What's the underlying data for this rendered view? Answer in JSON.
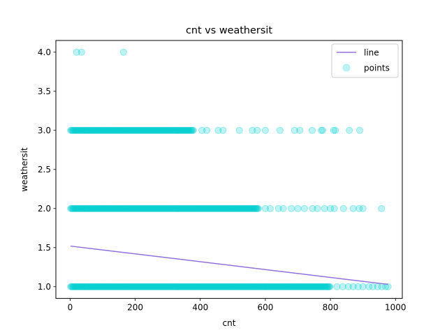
{
  "chart_data": {
    "type": "scatter",
    "title": "cnt vs weathersit",
    "xlabel": "cnt",
    "ylabel": "weathersit",
    "xlim": [
      -43.9,
      1020.9
    ],
    "ylim": [
      0.85,
      4.15
    ],
    "xticks": [
      0,
      200,
      400,
      600,
      800,
      1000
    ],
    "xtick_labels": [
      "0",
      "200",
      "400",
      "600",
      "800",
      "1000"
    ],
    "yticks": [
      1.0,
      1.5,
      2.0,
      2.5,
      3.0,
      3.5,
      4.0
    ],
    "ytick_labels": [
      "1.0",
      "1.5",
      "2.0",
      "2.5",
      "3.0",
      "3.5",
      "4.0"
    ],
    "grid": false,
    "legend": {
      "placement": "top-right",
      "entries": [
        {
          "label": "line",
          "kind": "line",
          "color": "#9370db"
        },
        {
          "label": "points",
          "kind": "marker",
          "color": "#00ced1"
        }
      ]
    },
    "series": [
      {
        "name": "line",
        "kind": "line",
        "color": "#9370db",
        "x": [
          1,
          977
        ],
        "y": [
          1.52,
          1.03
        ]
      },
      {
        "name": "points",
        "kind": "scatter",
        "color": "#00ced1",
        "alpha": 0.25,
        "dense_bands": [
          {
            "y": 1.0,
            "x_range": [
              1,
              800
            ]
          },
          {
            "y": 2.0,
            "x_range": [
              1,
              580
            ]
          },
          {
            "y": 3.0,
            "x_range": [
              1,
              380
            ]
          }
        ],
        "points": [
          {
            "x": 20,
            "y": 4.0
          },
          {
            "x": 35,
            "y": 4.0
          },
          {
            "x": 164,
            "y": 4.0
          },
          {
            "x": 405,
            "y": 3.0
          },
          {
            "x": 420,
            "y": 3.0
          },
          {
            "x": 455,
            "y": 3.0
          },
          {
            "x": 470,
            "y": 3.0
          },
          {
            "x": 520,
            "y": 3.0
          },
          {
            "x": 560,
            "y": 3.0
          },
          {
            "x": 575,
            "y": 3.0
          },
          {
            "x": 600,
            "y": 3.0
          },
          {
            "x": 645,
            "y": 3.0
          },
          {
            "x": 690,
            "y": 3.0
          },
          {
            "x": 706,
            "y": 3.0
          },
          {
            "x": 744,
            "y": 3.0
          },
          {
            "x": 772,
            "y": 3.0
          },
          {
            "x": 776,
            "y": 3.0
          },
          {
            "x": 810,
            "y": 3.0
          },
          {
            "x": 815,
            "y": 3.0
          },
          {
            "x": 858,
            "y": 3.0
          },
          {
            "x": 890,
            "y": 3.0
          },
          {
            "x": 600,
            "y": 2.0
          },
          {
            "x": 615,
            "y": 2.0
          },
          {
            "x": 640,
            "y": 2.0
          },
          {
            "x": 655,
            "y": 2.0
          },
          {
            "x": 680,
            "y": 2.0
          },
          {
            "x": 700,
            "y": 2.0
          },
          {
            "x": 720,
            "y": 2.0
          },
          {
            "x": 745,
            "y": 2.0
          },
          {
            "x": 760,
            "y": 2.0
          },
          {
            "x": 782,
            "y": 2.0
          },
          {
            "x": 800,
            "y": 2.0
          },
          {
            "x": 812,
            "y": 2.0
          },
          {
            "x": 840,
            "y": 2.0
          },
          {
            "x": 870,
            "y": 2.0
          },
          {
            "x": 888,
            "y": 2.0
          },
          {
            "x": 900,
            "y": 2.0
          },
          {
            "x": 957,
            "y": 2.0
          },
          {
            "x": 820,
            "y": 1.0
          },
          {
            "x": 838,
            "y": 1.0
          },
          {
            "x": 855,
            "y": 1.0
          },
          {
            "x": 870,
            "y": 1.0
          },
          {
            "x": 885,
            "y": 1.0
          },
          {
            "x": 900,
            "y": 1.0
          },
          {
            "x": 918,
            "y": 1.0
          },
          {
            "x": 930,
            "y": 1.0
          },
          {
            "x": 945,
            "y": 1.0
          },
          {
            "x": 958,
            "y": 1.0
          },
          {
            "x": 970,
            "y": 1.0
          },
          {
            "x": 977,
            "y": 1.0
          }
        ]
      }
    ]
  }
}
